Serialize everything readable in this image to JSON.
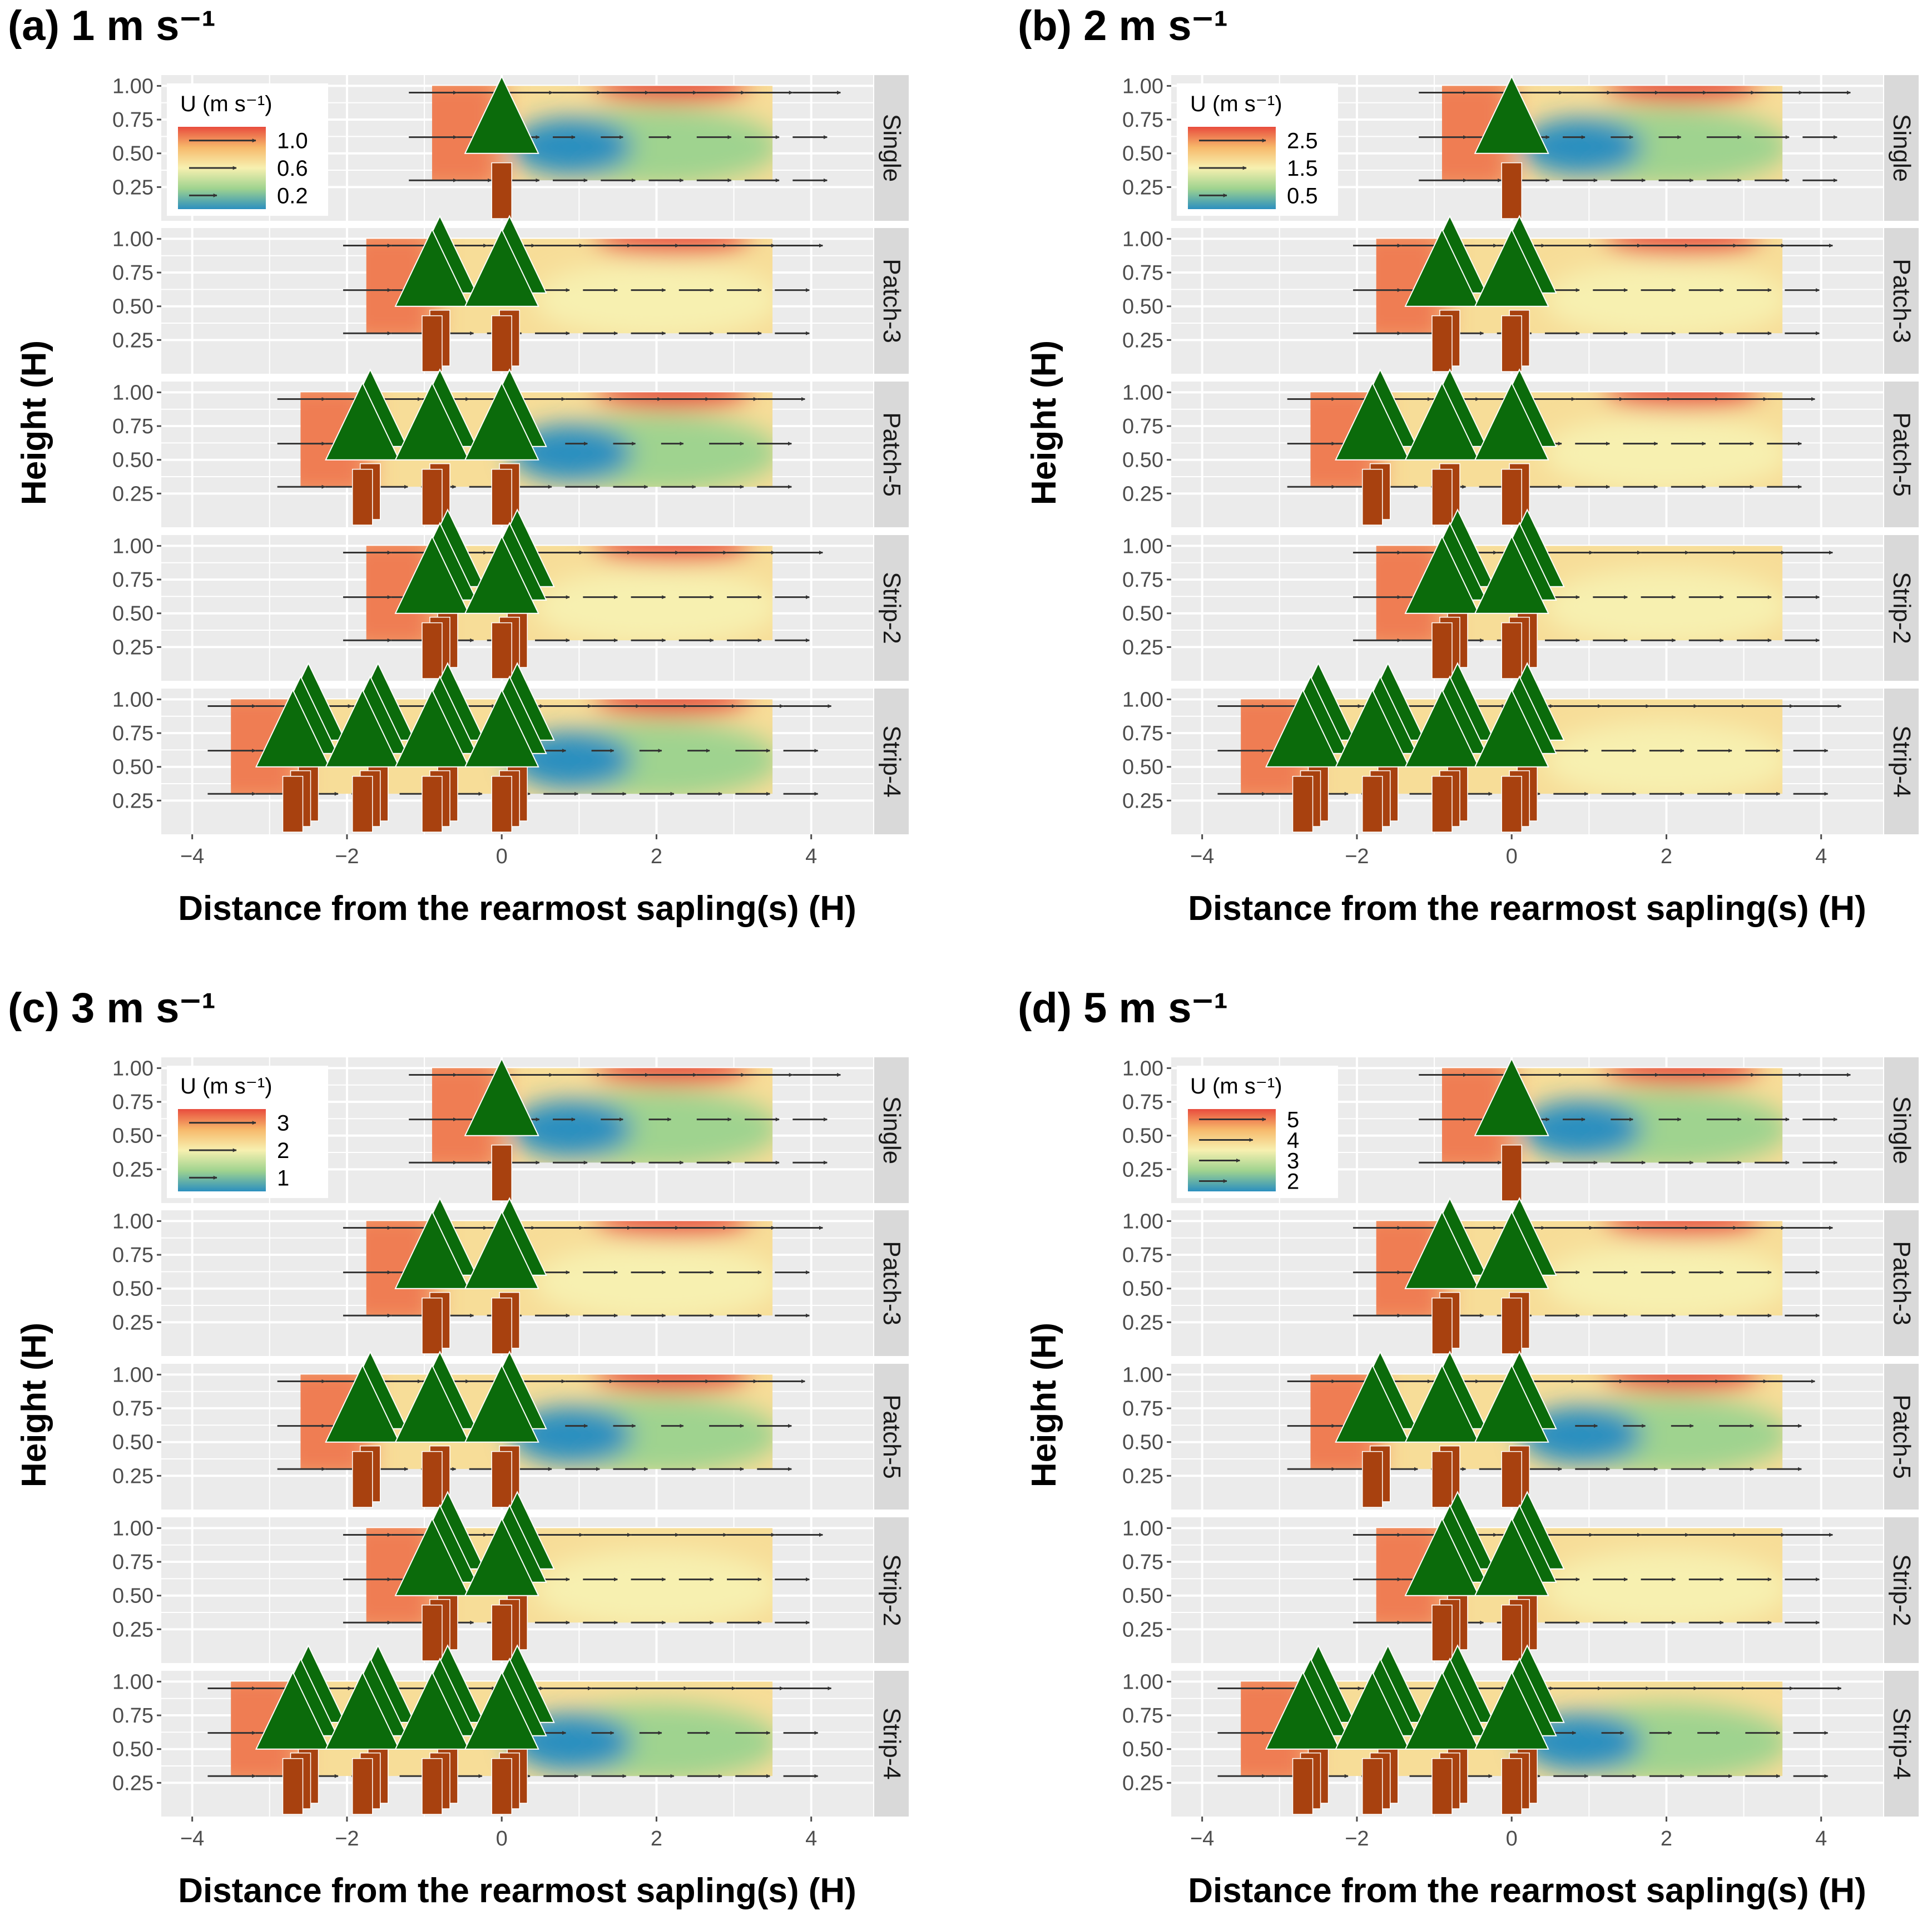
{
  "chart_data": [
    {
      "type": "heatmap",
      "title": "(a) 1 m s⁻¹",
      "legend": {
        "title": "U (m s⁻¹)",
        "labels": [
          "1.0",
          "0.6",
          "0.2"
        ],
        "placement": "top-left"
      },
      "xlabel": "Distance from the rearmost sapling(s) (H)",
      "ylabel": "Height (H)",
      "xticks": [
        "−4",
        "−2",
        "0",
        "2",
        "4"
      ],
      "yticks": [
        "0.25",
        "0.50",
        "0.75",
        "1.00"
      ],
      "facets": [
        {
          "label": "Single",
          "field_start": -0.9,
          "trees": [
            0
          ],
          "depth": 1,
          "upwind_fast": true,
          "wake_low": true,
          "top_max": true
        },
        {
          "label": "Patch-3",
          "field_start": -1.75,
          "trees": [
            -0.9,
            0
          ],
          "depth": 2,
          "upwind_fast": true,
          "wake_low": false,
          "top_max": true
        },
        {
          "label": "Patch-5",
          "field_start": -2.6,
          "trees": [
            -1.8,
            -0.9,
            0
          ],
          "depth": 2,
          "upwind_fast": true,
          "wake_low": true,
          "top_max": true
        },
        {
          "label": "Strip-2",
          "field_start": -1.75,
          "trees": [
            -0.9,
            0
          ],
          "depth": 3,
          "upwind_fast": true,
          "wake_low": false,
          "top_max": true
        },
        {
          "label": "Strip-4",
          "field_start": -3.5,
          "trees": [
            -2.7,
            -1.8,
            -0.9,
            0
          ],
          "depth": 3,
          "upwind_fast": true,
          "wake_low": true,
          "top_max": true
        }
      ]
    },
    {
      "type": "heatmap",
      "title": "(b) 2 m s⁻¹",
      "legend": {
        "title": "U (m s⁻¹)",
        "labels": [
          "2.5",
          "1.5",
          "0.5"
        ],
        "placement": "top-left"
      },
      "xlabel": "Distance from the rearmost sapling(s) (H)",
      "ylabel": "Height (H)",
      "xticks": [
        "−4",
        "−2",
        "0",
        "2",
        "4"
      ],
      "yticks": [
        "0.25",
        "0.50",
        "0.75",
        "1.00"
      ],
      "facets": [
        {
          "label": "Single",
          "field_start": -0.9,
          "trees": [
            0
          ],
          "depth": 1,
          "upwind_fast": true,
          "wake_low": true,
          "top_max": true
        },
        {
          "label": "Patch-3",
          "field_start": -1.75,
          "trees": [
            -0.9,
            0
          ],
          "depth": 2,
          "upwind_fast": true,
          "wake_low": false,
          "top_max": true
        },
        {
          "label": "Patch-5",
          "field_start": -2.6,
          "trees": [
            -1.8,
            -0.9,
            0
          ],
          "depth": 2,
          "upwind_fast": true,
          "wake_low": false,
          "top_max": true
        },
        {
          "label": "Strip-2",
          "field_start": -1.75,
          "trees": [
            -0.9,
            0
          ],
          "depth": 3,
          "upwind_fast": true,
          "wake_low": false,
          "top_max": false
        },
        {
          "label": "Strip-4",
          "field_start": -3.5,
          "trees": [
            -2.7,
            -1.8,
            -0.9,
            0
          ],
          "depth": 3,
          "upwind_fast": true,
          "wake_low": false,
          "top_max": false
        }
      ]
    },
    {
      "type": "heatmap",
      "title": "(c) 3 m s⁻¹",
      "legend": {
        "title": "U (m s⁻¹)",
        "labels": [
          "3",
          "2",
          "1"
        ],
        "placement": "top-left"
      },
      "xlabel": "Distance from the rearmost sapling(s) (H)",
      "ylabel": "Height (H)",
      "xticks": [
        "−4",
        "−2",
        "0",
        "2",
        "4"
      ],
      "yticks": [
        "0.25",
        "0.50",
        "0.75",
        "1.00"
      ],
      "facets": [
        {
          "label": "Single",
          "field_start": -0.9,
          "trees": [
            0
          ],
          "depth": 1,
          "upwind_fast": true,
          "wake_low": true,
          "top_max": true
        },
        {
          "label": "Patch-3",
          "field_start": -1.75,
          "trees": [
            -0.9,
            0
          ],
          "depth": 2,
          "upwind_fast": true,
          "wake_low": false,
          "top_max": true
        },
        {
          "label": "Patch-5",
          "field_start": -2.6,
          "trees": [
            -1.8,
            -0.9,
            0
          ],
          "depth": 2,
          "upwind_fast": true,
          "wake_low": true,
          "top_max": true
        },
        {
          "label": "Strip-2",
          "field_start": -1.75,
          "trees": [
            -0.9,
            0
          ],
          "depth": 3,
          "upwind_fast": true,
          "wake_low": false,
          "top_max": false
        },
        {
          "label": "Strip-4",
          "field_start": -3.5,
          "trees": [
            -2.7,
            -1.8,
            -0.9,
            0
          ],
          "depth": 3,
          "upwind_fast": true,
          "wake_low": true,
          "top_max": false
        }
      ]
    },
    {
      "type": "heatmap",
      "title": "(d) 5 m s⁻¹",
      "legend": {
        "title": "U (m s⁻¹)",
        "labels": [
          "5",
          "4",
          "3",
          "2"
        ],
        "placement": "top-left"
      },
      "xlabel": "Distance from the rearmost sapling(s) (H)",
      "ylabel": "Height (H)",
      "xticks": [
        "−4",
        "−2",
        "0",
        "2",
        "4"
      ],
      "yticks": [
        "0.25",
        "0.50",
        "0.75",
        "1.00"
      ],
      "facets": [
        {
          "label": "Single",
          "field_start": -0.9,
          "trees": [
            0
          ],
          "depth": 1,
          "upwind_fast": true,
          "wake_low": true,
          "top_max": true
        },
        {
          "label": "Patch-3",
          "field_start": -1.75,
          "trees": [
            -0.9,
            0
          ],
          "depth": 2,
          "upwind_fast": true,
          "wake_low": false,
          "top_max": true
        },
        {
          "label": "Patch-5",
          "field_start": -2.6,
          "trees": [
            -1.8,
            -0.9,
            0
          ],
          "depth": 2,
          "upwind_fast": true,
          "wake_low": true,
          "top_max": true
        },
        {
          "label": "Strip-2",
          "field_start": -1.75,
          "trees": [
            -0.9,
            0
          ],
          "depth": 3,
          "upwind_fast": true,
          "wake_low": false,
          "top_max": false
        },
        {
          "label": "Strip-4",
          "field_start": -3.5,
          "trees": [
            -2.7,
            -1.8,
            -0.9,
            0
          ],
          "depth": 3,
          "upwind_fast": true,
          "wake_low": true,
          "top_max": false
        }
      ]
    }
  ],
  "colors": {
    "panel_bg": "#ebebeb",
    "grid": "#ffffff",
    "strip_bg": "#d9d9d9",
    "foliage": "#0b6b0b",
    "trunk": "#a8410f",
    "arrow": "#333333",
    "scale_high": "#e84c3d",
    "scale_mid_high": "#f7b96b",
    "scale_mid": "#f7f0b0",
    "scale_mid_low": "#9fd38f",
    "scale_low": "#2b8fbf"
  }
}
